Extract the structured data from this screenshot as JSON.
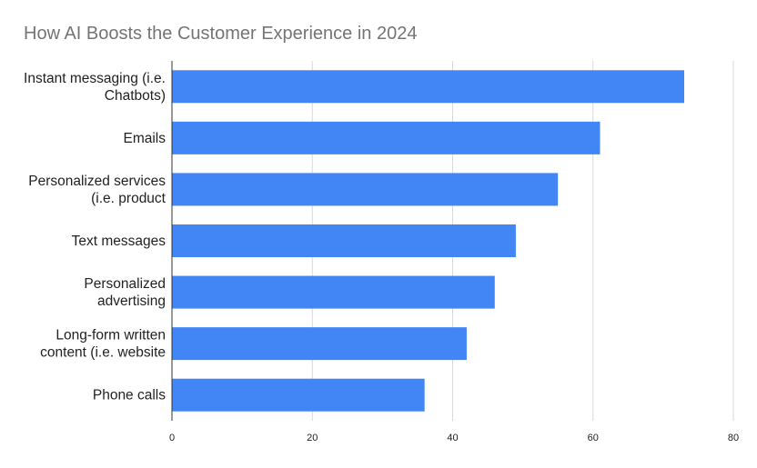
{
  "chart_data": {
    "type": "bar",
    "orientation": "horizontal",
    "title": "How AI Boosts the Customer Experience in 2024",
    "xlabel": "",
    "ylabel": "",
    "categories": [
      [
        "Instant messaging (i.e.",
        "Chatbots)"
      ],
      [
        "Emails"
      ],
      [
        "Personalized services",
        "(i.e. product"
      ],
      [
        "Text messages"
      ],
      [
        "Personalized",
        "advertising"
      ],
      [
        "Long-form written",
        "content (i.e. website"
      ],
      [
        "Phone calls"
      ]
    ],
    "values": [
      73,
      61,
      55,
      49,
      46,
      42,
      36
    ],
    "xlim": [
      0,
      80
    ],
    "xticks": [
      "0",
      "20",
      "40",
      "60",
      "80"
    ],
    "grid": true,
    "legend": "none",
    "bar_color": "#4285f4",
    "grid_color": "#d9d9d9",
    "axis_color": "#333333"
  }
}
